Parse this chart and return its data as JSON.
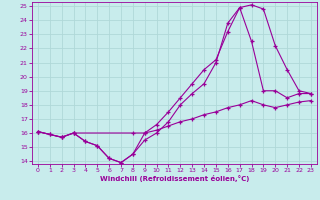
{
  "xlabel": "Windchill (Refroidissement éolien,°C)",
  "xlim": [
    -0.5,
    23.5
  ],
  "ylim": [
    13.8,
    25.3
  ],
  "yticks": [
    14,
    15,
    16,
    17,
    18,
    19,
    20,
    21,
    22,
    23,
    24,
    25
  ],
  "xticks": [
    0,
    1,
    2,
    3,
    4,
    5,
    6,
    7,
    8,
    9,
    10,
    11,
    12,
    13,
    14,
    15,
    16,
    17,
    18,
    19,
    20,
    21,
    22,
    23
  ],
  "line_color": "#990099",
  "bg_color": "#c8ecec",
  "grid_color": "#b0d8d8",
  "line1_x": [
    0,
    1,
    2,
    3,
    4,
    5,
    6,
    7,
    8,
    9,
    10,
    11,
    12,
    13,
    14,
    15,
    16,
    17,
    18,
    19,
    20,
    21,
    22,
    23
  ],
  "line1_y": [
    16.1,
    15.9,
    15.7,
    16.0,
    15.4,
    15.1,
    14.2,
    13.9,
    14.5,
    16.0,
    16.6,
    17.5,
    18.5,
    19.5,
    20.5,
    21.2,
    23.2,
    24.9,
    25.1,
    24.8,
    22.2,
    20.5,
    19.0,
    18.8
  ],
  "line2_x": [
    0,
    2,
    3,
    8,
    9,
    10,
    11,
    12,
    13,
    14,
    15,
    16,
    17,
    18,
    19,
    20,
    21,
    22,
    23
  ],
  "line2_y": [
    16.1,
    15.7,
    16.0,
    16.0,
    16.0,
    16.2,
    16.5,
    16.8,
    17.0,
    17.3,
    17.5,
    17.8,
    18.0,
    18.3,
    18.0,
    17.8,
    18.0,
    18.2,
    18.3
  ],
  "line3_x": [
    0,
    1,
    2,
    3,
    4,
    5,
    6,
    7,
    8,
    9,
    10,
    11,
    12,
    13,
    14,
    15,
    16,
    17,
    18,
    19,
    20,
    21,
    22,
    23
  ],
  "line3_y": [
    16.1,
    15.9,
    15.7,
    16.0,
    15.4,
    15.1,
    14.2,
    13.9,
    14.5,
    15.5,
    16.0,
    16.8,
    18.0,
    18.8,
    19.5,
    21.0,
    23.8,
    24.9,
    22.5,
    19.0,
    19.0,
    18.5,
    18.8,
    18.8
  ]
}
